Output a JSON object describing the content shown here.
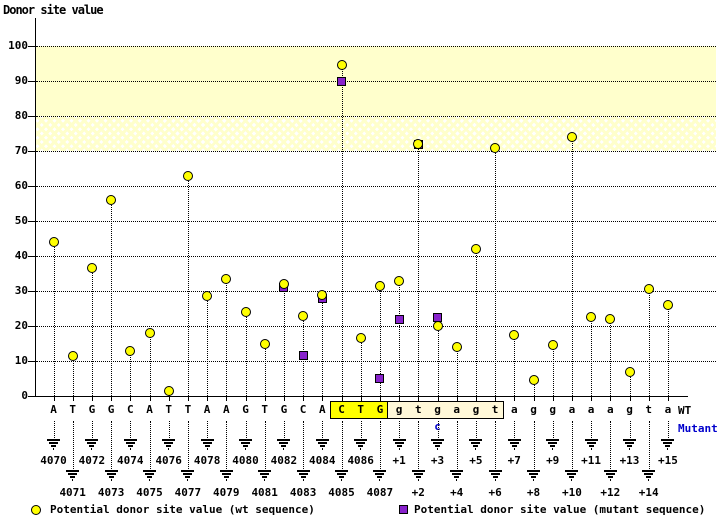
{
  "title": "Donor site value",
  "row_labels": {
    "wt": "WT",
    "mutant": "Mutant"
  },
  "legend": {
    "wt_label": "Potential donor site value (wt sequence)",
    "mutant_label": "Potential donor site value (mutant sequence)",
    "position": "bottom"
  },
  "colors": {
    "wt_point": "#ffff00",
    "mutant_point": "#8822cc",
    "band_solid": "#ffffcc",
    "highlight_strong": "#ffff00",
    "highlight_soft": "#fff8d8",
    "mutant_text": "#0000cc"
  },
  "chart_data": {
    "type": "scatter",
    "title": "Donor site value",
    "ylabel": "Donor site value",
    "xlabel": "",
    "ylim": [
      0,
      105
    ],
    "yticks": [
      0,
      10,
      20,
      30,
      40,
      50,
      60,
      70,
      80,
      90,
      100
    ],
    "grid": "horizontal-dotted",
    "legend_position": "bottom",
    "bands": [
      {
        "from": 80,
        "to": 100,
        "style": "solid"
      },
      {
        "from": 70,
        "to": 80,
        "style": "hatched"
      }
    ],
    "series_names": [
      "wt sequence",
      "mutant sequence"
    ],
    "columns": [
      {
        "base": "A",
        "pos": "4070",
        "wt": 44
      },
      {
        "base": "T",
        "pos": "4071",
        "wt": 11.5
      },
      {
        "base": "G",
        "pos": "4072",
        "wt": 36.5
      },
      {
        "base": "G",
        "pos": "4073",
        "wt": 56
      },
      {
        "base": "C",
        "pos": "4074",
        "wt": 13
      },
      {
        "base": "A",
        "pos": "4075",
        "wt": 18
      },
      {
        "base": "T",
        "pos": "4076",
        "wt": 1.5
      },
      {
        "base": "T",
        "pos": "4077",
        "wt": 63
      },
      {
        "base": "A",
        "pos": "4078",
        "wt": 28.5
      },
      {
        "base": "A",
        "pos": "4079",
        "wt": 33.5
      },
      {
        "base": "G",
        "pos": "4080",
        "wt": 24
      },
      {
        "base": "T",
        "pos": "4081",
        "wt": 15
      },
      {
        "base": "G",
        "pos": "4082",
        "wt": 32,
        "mut": 31
      },
      {
        "base": "C",
        "pos": "4083",
        "wt": 23,
        "mut": 11.5
      },
      {
        "base": "A",
        "pos": "4084",
        "wt": 29,
        "mut": 28
      },
      {
        "base": "C",
        "pos": "4085",
        "wt": 94.5,
        "mut": 90,
        "hl": "strong"
      },
      {
        "base": "T",
        "pos": "4086",
        "wt": 16.5,
        "hl": "strong"
      },
      {
        "base": "G",
        "pos": "4087",
        "wt": 31.5,
        "mut": 5,
        "hl": "strong"
      },
      {
        "base": "g",
        "pos": "+1",
        "wt": 33,
        "mut": 22,
        "hl": "soft"
      },
      {
        "base": "t",
        "pos": "+2",
        "wt": 72,
        "mut": 72,
        "hl": "soft"
      },
      {
        "base": "g",
        "pos": "+3",
        "wt": 20,
        "mut": 22.5,
        "hl": "soft",
        "mut_base": "c"
      },
      {
        "base": "a",
        "pos": "+4",
        "wt": 14,
        "hl": "soft"
      },
      {
        "base": "g",
        "pos": "+5",
        "wt": 42,
        "hl": "soft"
      },
      {
        "base": "t",
        "pos": "+6",
        "wt": 71,
        "hl": "soft"
      },
      {
        "base": "a",
        "pos": "+7",
        "wt": 17.5
      },
      {
        "base": "g",
        "pos": "+8",
        "wt": 4.5
      },
      {
        "base": "g",
        "pos": "+9",
        "wt": 14.5
      },
      {
        "base": "a",
        "pos": "+10",
        "wt": 74
      },
      {
        "base": "a",
        "pos": "+11",
        "wt": 22.5
      },
      {
        "base": "a",
        "pos": "+12",
        "wt": 22
      },
      {
        "base": "g",
        "pos": "+13",
        "wt": 7
      },
      {
        "base": "t",
        "pos": "+14",
        "wt": 30.5
      },
      {
        "base": "a",
        "pos": "+15",
        "wt": 26
      }
    ]
  }
}
